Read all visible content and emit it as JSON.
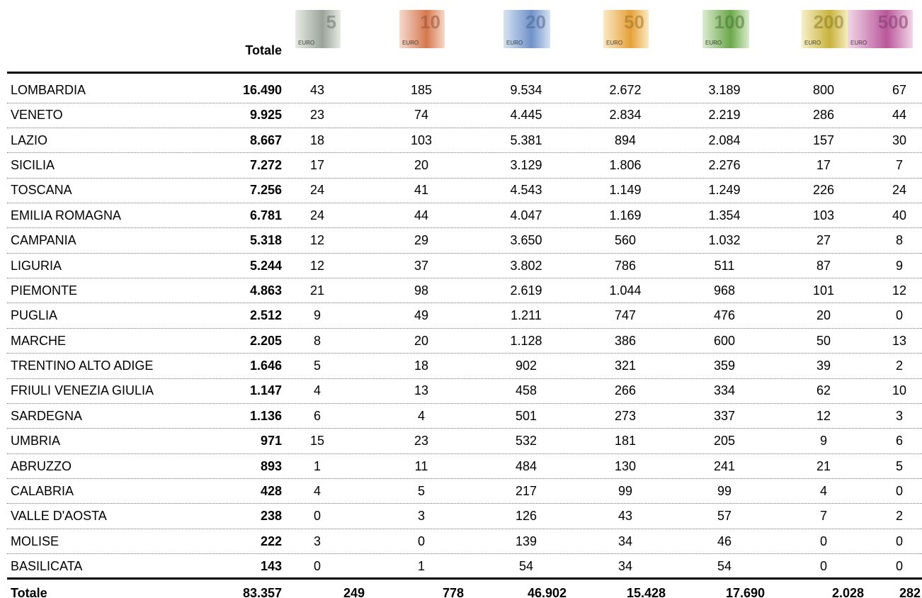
{
  "header": {
    "total": "Totale",
    "banknotes": [
      "5",
      "10",
      "20",
      "50",
      "100",
      "200",
      "500"
    ],
    "currency": "EURO"
  },
  "rows": [
    {
      "region": "LOMBARDIA",
      "total": "16.490",
      "counts": [
        "43",
        "185",
        "9.534",
        "2.672",
        "3.189",
        "800",
        "67"
      ]
    },
    {
      "region": "VENETO",
      "total": "9.925",
      "counts": [
        "23",
        "74",
        "4.445",
        "2.834",
        "2.219",
        "286",
        "44"
      ]
    },
    {
      "region": "LAZIO",
      "total": "8.667",
      "counts": [
        "18",
        "103",
        "5.381",
        "894",
        "2.084",
        "157",
        "30"
      ]
    },
    {
      "region": "SICILIA",
      "total": "7.272",
      "counts": [
        "17",
        "20",
        "3.129",
        "1.806",
        "2.276",
        "17",
        "7"
      ]
    },
    {
      "region": "TOSCANA",
      "total": "7.256",
      "counts": [
        "24",
        "41",
        "4.543",
        "1.149",
        "1.249",
        "226",
        "24"
      ]
    },
    {
      "region": "EMILIA ROMAGNA",
      "total": "6.781",
      "counts": [
        "24",
        "44",
        "4.047",
        "1.169",
        "1.354",
        "103",
        "40"
      ]
    },
    {
      "region": "CAMPANIA",
      "total": "5.318",
      "counts": [
        "12",
        "29",
        "3.650",
        "560",
        "1.032",
        "27",
        "8"
      ]
    },
    {
      "region": "LIGURIA",
      "total": "5.244",
      "counts": [
        "12",
        "37",
        "3.802",
        "786",
        "511",
        "87",
        "9"
      ]
    },
    {
      "region": "PIEMONTE",
      "total": "4.863",
      "counts": [
        "21",
        "98",
        "2.619",
        "1.044",
        "968",
        "101",
        "12"
      ]
    },
    {
      "region": "PUGLIA",
      "total": "2.512",
      "counts": [
        "9",
        "49",
        "1.211",
        "747",
        "476",
        "20",
        "0"
      ]
    },
    {
      "region": "MARCHE",
      "total": "2.205",
      "counts": [
        "8",
        "20",
        "1.128",
        "386",
        "600",
        "50",
        "13"
      ]
    },
    {
      "region": "TRENTINO ALTO ADIGE",
      "total": "1.646",
      "counts": [
        "5",
        "18",
        "902",
        "321",
        "359",
        "39",
        "2"
      ]
    },
    {
      "region": "FRIULI VENEZIA GIULIA",
      "total": "1.147",
      "counts": [
        "4",
        "13",
        "458",
        "266",
        "334",
        "62",
        "10"
      ]
    },
    {
      "region": "SARDEGNA",
      "total": "1.136",
      "counts": [
        "6",
        "4",
        "501",
        "273",
        "337",
        "12",
        "3"
      ]
    },
    {
      "region": "UMBRIA",
      "total": "971",
      "counts": [
        "15",
        "23",
        "532",
        "181",
        "205",
        "9",
        "6"
      ]
    },
    {
      "region": "ABRUZZO",
      "total": "893",
      "counts": [
        "1",
        "11",
        "484",
        "130",
        "241",
        "21",
        "5"
      ]
    },
    {
      "region": "CALABRIA",
      "total": "428",
      "counts": [
        "4",
        "5",
        "217",
        "99",
        "99",
        "4",
        "0"
      ]
    },
    {
      "region": "VALLE D'AOSTA",
      "total": "238",
      "counts": [
        "0",
        "3",
        "126",
        "43",
        "57",
        "7",
        "2"
      ]
    },
    {
      "region": "MOLISE",
      "total": "222",
      "counts": [
        "3",
        "0",
        "139",
        "34",
        "46",
        "0",
        "0"
      ]
    },
    {
      "region": "BASILICATA",
      "total": "143",
      "counts": [
        "0",
        "1",
        "54",
        "34",
        "54",
        "0",
        "0"
      ]
    }
  ],
  "footer": {
    "label": "Totale",
    "total": "83.357",
    "counts": [
      "249",
      "778",
      "46.902",
      "15.428",
      "17.690",
      "2.028",
      "282"
    ]
  }
}
